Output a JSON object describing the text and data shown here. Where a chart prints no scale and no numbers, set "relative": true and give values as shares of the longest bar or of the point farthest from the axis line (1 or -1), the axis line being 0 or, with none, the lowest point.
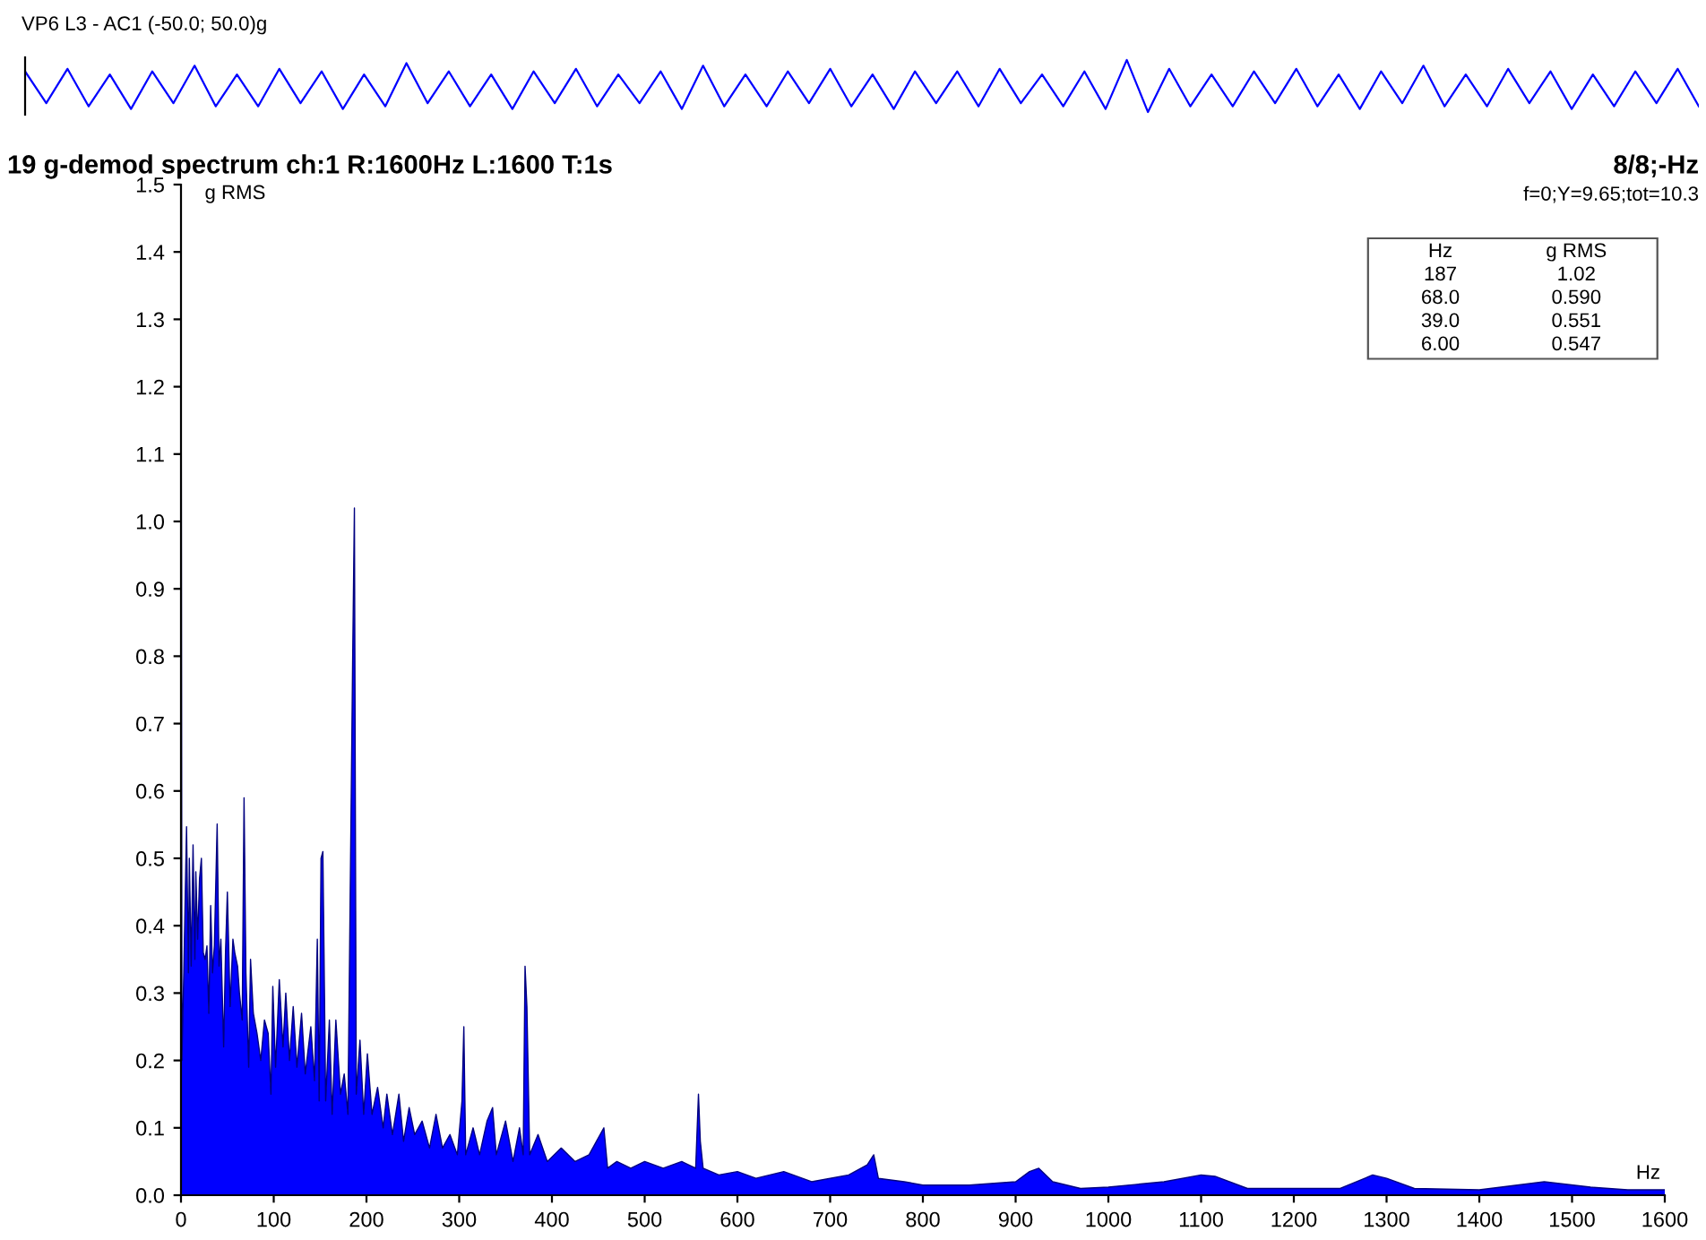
{
  "chart_data": [
    {
      "type": "line",
      "title": "VP6 L3 - AC1 (-50.0; 50.0)g",
      "relative": true,
      "color": "#0000ff",
      "tick_labels": false,
      "legend": false,
      "grid": false,
      "categories": [
        null,
        null,
        null,
        null,
        null,
        null,
        null,
        null,
        null,
        null,
        null,
        null,
        null,
        null,
        null,
        null,
        null,
        null,
        null,
        null,
        null,
        null,
        null,
        null,
        null,
        null,
        null,
        null,
        null,
        null,
        null,
        null,
        null,
        null,
        null,
        null,
        null,
        null,
        null,
        null,
        null,
        null,
        null,
        null,
        null,
        null,
        null,
        null,
        null,
        null,
        null,
        null,
        null,
        null,
        null,
        null,
        null,
        null,
        null,
        null,
        null,
        null,
        null,
        null,
        null,
        null,
        null,
        null,
        null,
        null,
        null,
        null,
        null,
        null,
        null,
        null,
        null,
        null,
        null,
        null
      ],
      "values": [
        0.78,
        0.17,
        0.83,
        0.11,
        0.72,
        0.06,
        0.78,
        0.17,
        0.89,
        0.11,
        0.72,
        0.11,
        0.83,
        0.17,
        0.78,
        0.06,
        0.72,
        0.11,
        0.94,
        0.17,
        0.78,
        0.11,
        0.72,
        0.06,
        0.78,
        0.17,
        0.83,
        0.11,
        0.72,
        0.17,
        0.78,
        0.06,
        0.89,
        0.11,
        0.72,
        0.11,
        0.78,
        0.17,
        0.83,
        0.11,
        0.72,
        0.06,
        0.78,
        0.17,
        0.78,
        0.11,
        0.83,
        0.17,
        0.72,
        0.11,
        0.78,
        0.06,
        1.0,
        0.0,
        0.83,
        0.11,
        0.72,
        0.11,
        0.78,
        0.17,
        0.83,
        0.11,
        0.72,
        0.06,
        0.78,
        0.17,
        0.89,
        0.11,
        0.72,
        0.11,
        0.83,
        0.17,
        0.78,
        0.06,
        0.72,
        0.11,
        0.78,
        0.17,
        0.83,
        0.11
      ]
    },
    {
      "type": "area",
      "title": "19 g-demod spectrum ch:1 R:1600Hz L:1600 T:1s",
      "subtitle": "8/8;-Hz",
      "ylabel": "g RMS",
      "xlabel": "Hz",
      "color": "#0000ff",
      "legend": false,
      "grid": false,
      "annotations": [
        "f=0;Y=9.65;tot=10.3",
        "Hz",
        "g RMS",
        "187",
        "1.02",
        "68.0",
        "0.590",
        "39.0",
        "0.551",
        "6.00",
        "0.547"
      ],
      "xlim": [
        0,
        1600
      ],
      "xticks": [
        0,
        100,
        200,
        300,
        400,
        500,
        600,
        700,
        800,
        900,
        1000,
        1100,
        1200,
        1300,
        1400,
        1500,
        1600
      ],
      "ylim": [
        0,
        1.5
      ],
      "yticks": [
        {
          "value": 0,
          "label": "0.0"
        },
        0.1,
        0.2,
        0.3,
        0.4,
        0.5,
        0.6,
        0.7,
        0.8,
        0.9,
        {
          "value": 1,
          "label": "1.0"
        },
        1.1,
        1.2,
        1.3,
        1.4,
        1.5
      ],
      "x": [
        0,
        1,
        3,
        6,
        8,
        9,
        11,
        13,
        15,
        16,
        18,
        20,
        22,
        24,
        26,
        28,
        30,
        32,
        34,
        36,
        39,
        41,
        43,
        46,
        48,
        50,
        53,
        56,
        58,
        61,
        63,
        66,
        68,
        70,
        73,
        75,
        78,
        82,
        86,
        90,
        94,
        97,
        99,
        102,
        106,
        110,
        113,
        117,
        121,
        125,
        130,
        134,
        140,
        144,
        147,
        149,
        151,
        153,
        156,
        160,
        163,
        167,
        172,
        176,
        180,
        185,
        187,
        189,
        193,
        197,
        201,
        206,
        212,
        218,
        222,
        228,
        235,
        240,
        246,
        252,
        260,
        268,
        275,
        282,
        290,
        298,
        303,
        305,
        307,
        315,
        322,
        330,
        336,
        340,
        350,
        358,
        365,
        369,
        371,
        373,
        376,
        385,
        395,
        410,
        425,
        440,
        456,
        460,
        470,
        485,
        500,
        520,
        540,
        555,
        558,
        560,
        563,
        580,
        600,
        620,
        650,
        680,
        720,
        740,
        747,
        752,
        780,
        800,
        850,
        900,
        915,
        925,
        940,
        970,
        1000,
        1060,
        1100,
        1115,
        1150,
        1200,
        1250,
        1285,
        1300,
        1330,
        1400,
        1470,
        1520,
        1560,
        1600
      ],
      "values": [
        1.5,
        0.2,
        0.33,
        0.547,
        0.33,
        0.5,
        0.34,
        0.52,
        0.35,
        0.48,
        0.38,
        0.47,
        0.5,
        0.36,
        0.35,
        0.37,
        0.27,
        0.43,
        0.33,
        0.37,
        0.551,
        0.34,
        0.38,
        0.22,
        0.36,
        0.45,
        0.28,
        0.38,
        0.36,
        0.34,
        0.3,
        0.26,
        0.59,
        0.33,
        0.19,
        0.35,
        0.27,
        0.24,
        0.2,
        0.26,
        0.24,
        0.15,
        0.31,
        0.19,
        0.32,
        0.22,
        0.3,
        0.2,
        0.28,
        0.19,
        0.27,
        0.18,
        0.25,
        0.17,
        0.38,
        0.14,
        0.5,
        0.51,
        0.14,
        0.26,
        0.12,
        0.26,
        0.15,
        0.18,
        0.12,
        0.78,
        1.02,
        0.15,
        0.23,
        0.12,
        0.21,
        0.12,
        0.16,
        0.1,
        0.15,
        0.09,
        0.15,
        0.08,
        0.13,
        0.09,
        0.11,
        0.07,
        0.12,
        0.07,
        0.09,
        0.06,
        0.14,
        0.25,
        0.06,
        0.1,
        0.06,
        0.11,
        0.13,
        0.06,
        0.11,
        0.05,
        0.1,
        0.06,
        0.34,
        0.28,
        0.06,
        0.09,
        0.05,
        0.07,
        0.05,
        0.06,
        0.1,
        0.04,
        0.05,
        0.04,
        0.05,
        0.04,
        0.05,
        0.04,
        0.15,
        0.08,
        0.04,
        0.03,
        0.035,
        0.025,
        0.035,
        0.02,
        0.03,
        0.045,
        0.06,
        0.025,
        0.02,
        0.015,
        0.015,
        0.02,
        0.035,
        0.04,
        0.02,
        0.01,
        0.012,
        0.02,
        0.03,
        0.028,
        0.01,
        0.01,
        0.01,
        0.03,
        0.025,
        0.01,
        0.008,
        0.02,
        0.012,
        0.008,
        0.008
      ]
    }
  ]
}
